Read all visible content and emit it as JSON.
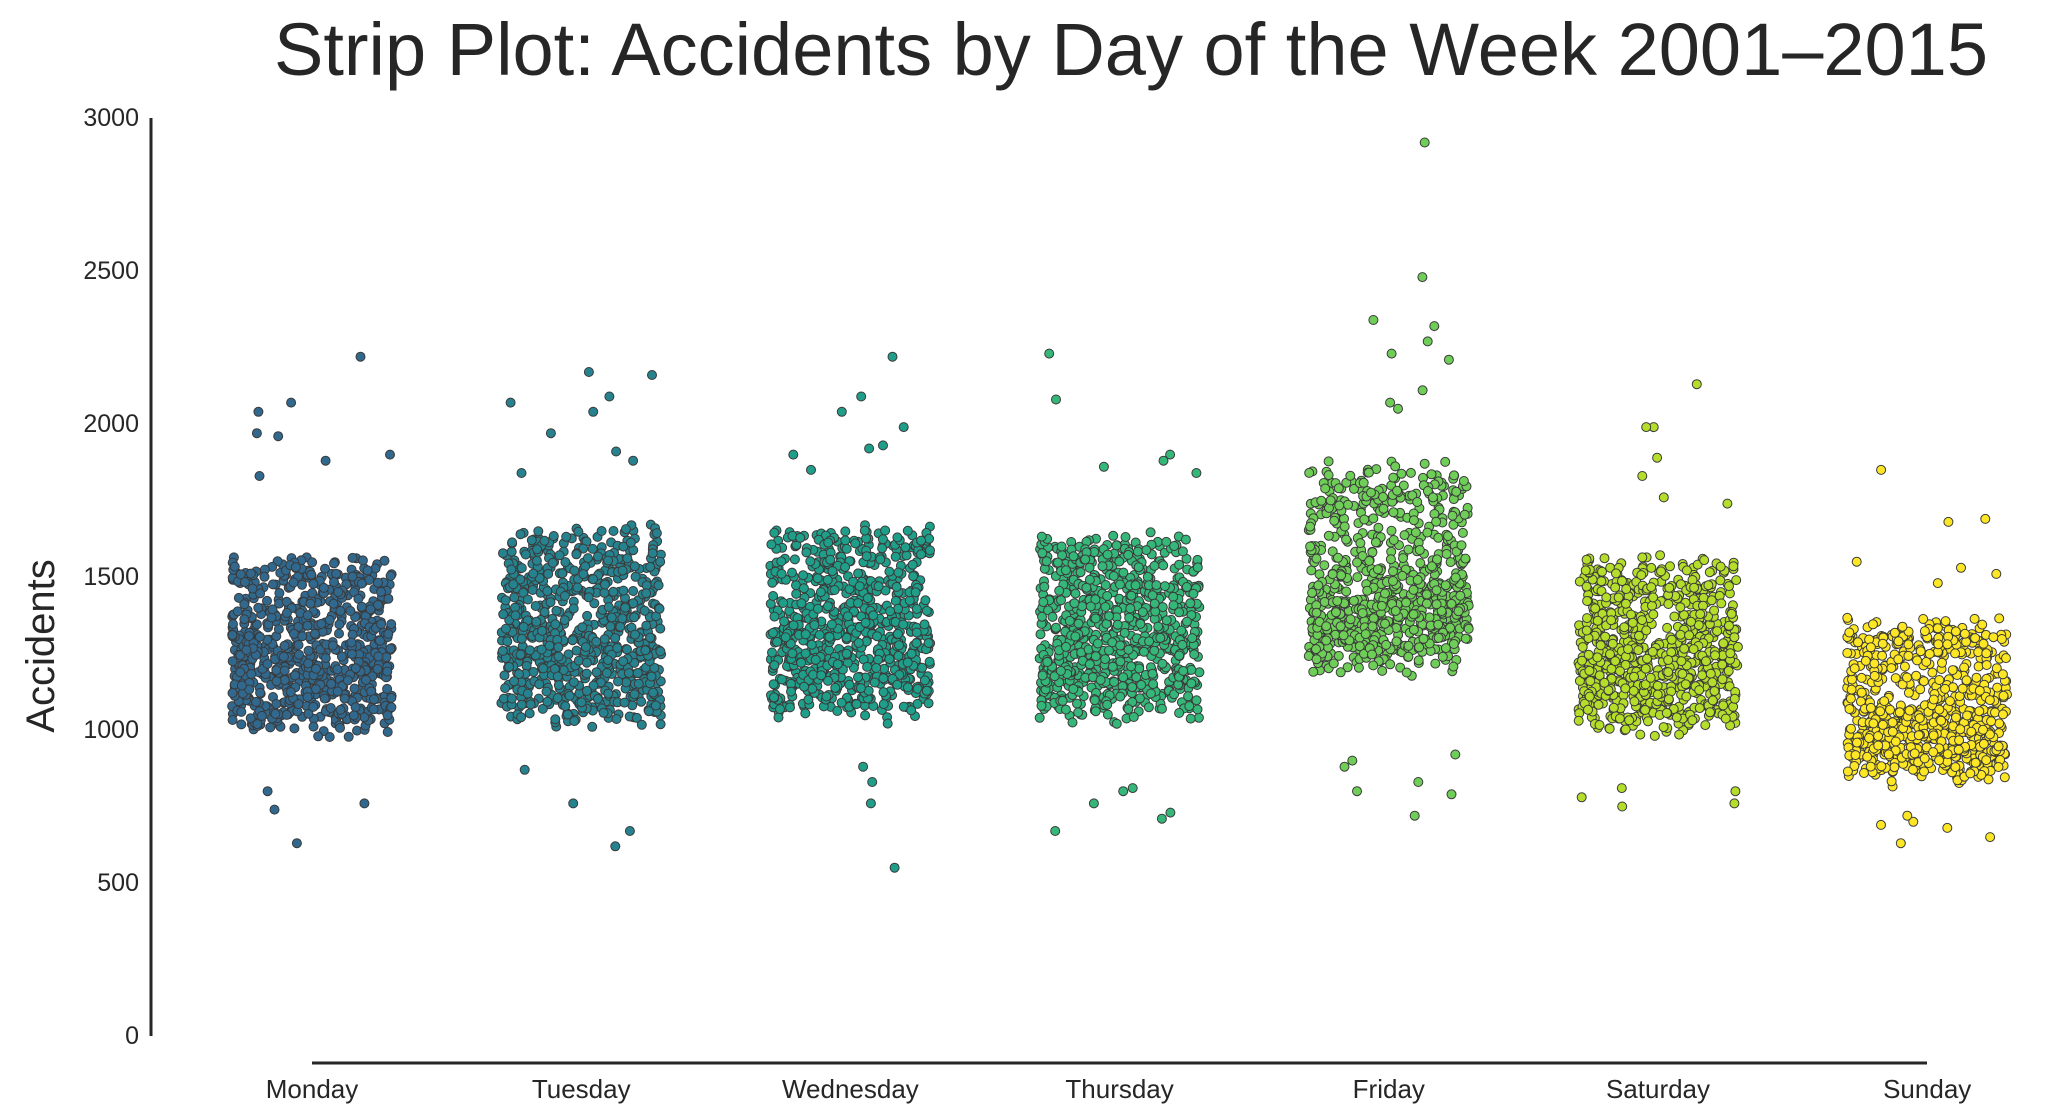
{
  "chart_data": {
    "type": "scatter",
    "subtype": "strip",
    "title": "Strip Plot: Accidents by Day of the Week 2001–2015",
    "xlabel": "",
    "ylabel": "Accidents",
    "ylim": [
      0,
      3000
    ],
    "y_ticks": [
      0,
      500,
      1000,
      1500,
      2000,
      2500,
      3000
    ],
    "grid": false,
    "legend": "none",
    "categories": [
      "Monday",
      "Tuesday",
      "Wednesday",
      "Thursday",
      "Friday",
      "Saturday",
      "Sunday"
    ],
    "points_per_category": 782,
    "series": [
      {
        "category": "Monday",
        "color": "#31688e",
        "median": 1240,
        "core_range": [
          950,
          1550
        ],
        "tail_low": [
          630,
          800,
          740,
          760
        ],
        "tail_high": [
          2220,
          2070,
          2040,
          1970,
          1960,
          1900,
          1880,
          1830
        ]
      },
      {
        "category": "Tuesday",
        "color": "#26828e",
        "median": 1300,
        "core_range": [
          980,
          1650
        ],
        "tail_low": [
          670,
          620,
          760,
          870
        ],
        "tail_high": [
          2170,
          2160,
          2090,
          2070,
          2040,
          1970,
          1910,
          1880,
          1840
        ]
      },
      {
        "category": "Wednesday",
        "color": "#1f9e89",
        "median": 1320,
        "core_range": [
          1000,
          1650
        ],
        "tail_low": [
          550,
          760,
          830,
          880
        ],
        "tail_high": [
          2220,
          2090,
          2040,
          1990,
          1930,
          1920,
          1900,
          1850
        ]
      },
      {
        "category": "Thursday",
        "color": "#35b779",
        "median": 1300,
        "core_range": [
          1000,
          1620
        ],
        "tail_low": [
          670,
          710,
          730,
          760,
          800,
          810
        ],
        "tail_high": [
          2230,
          2080,
          1900,
          1880,
          1860,
          1840
        ]
      },
      {
        "category": "Friday",
        "color": "#6ece58",
        "median": 1450,
        "core_range": [
          1150,
          1850
        ],
        "tail_low": [
          720,
          790,
          800,
          830,
          880,
          900,
          920
        ],
        "tail_high": [
          2920,
          2480,
          2340,
          2320,
          2270,
          2230,
          2210,
          2110,
          2070,
          2050
        ]
      },
      {
        "category": "Saturday",
        "color": "#b5de2b",
        "median": 1250,
        "core_range": [
          950,
          1550
        ],
        "tail_low": [
          750,
          760,
          780,
          800,
          810
        ],
        "tail_high": [
          2130,
          1990,
          1990,
          1890,
          1830,
          1760,
          1740
        ]
      },
      {
        "category": "Sunday",
        "color": "#fde725",
        "median": 1050,
        "core_range": [
          800,
          1350
        ],
        "tail_low": [
          630,
          650,
          680,
          690,
          700,
          720
        ],
        "tail_high": [
          1850,
          1690,
          1680,
          1550,
          1530,
          1510,
          1480
        ]
      }
    ]
  }
}
